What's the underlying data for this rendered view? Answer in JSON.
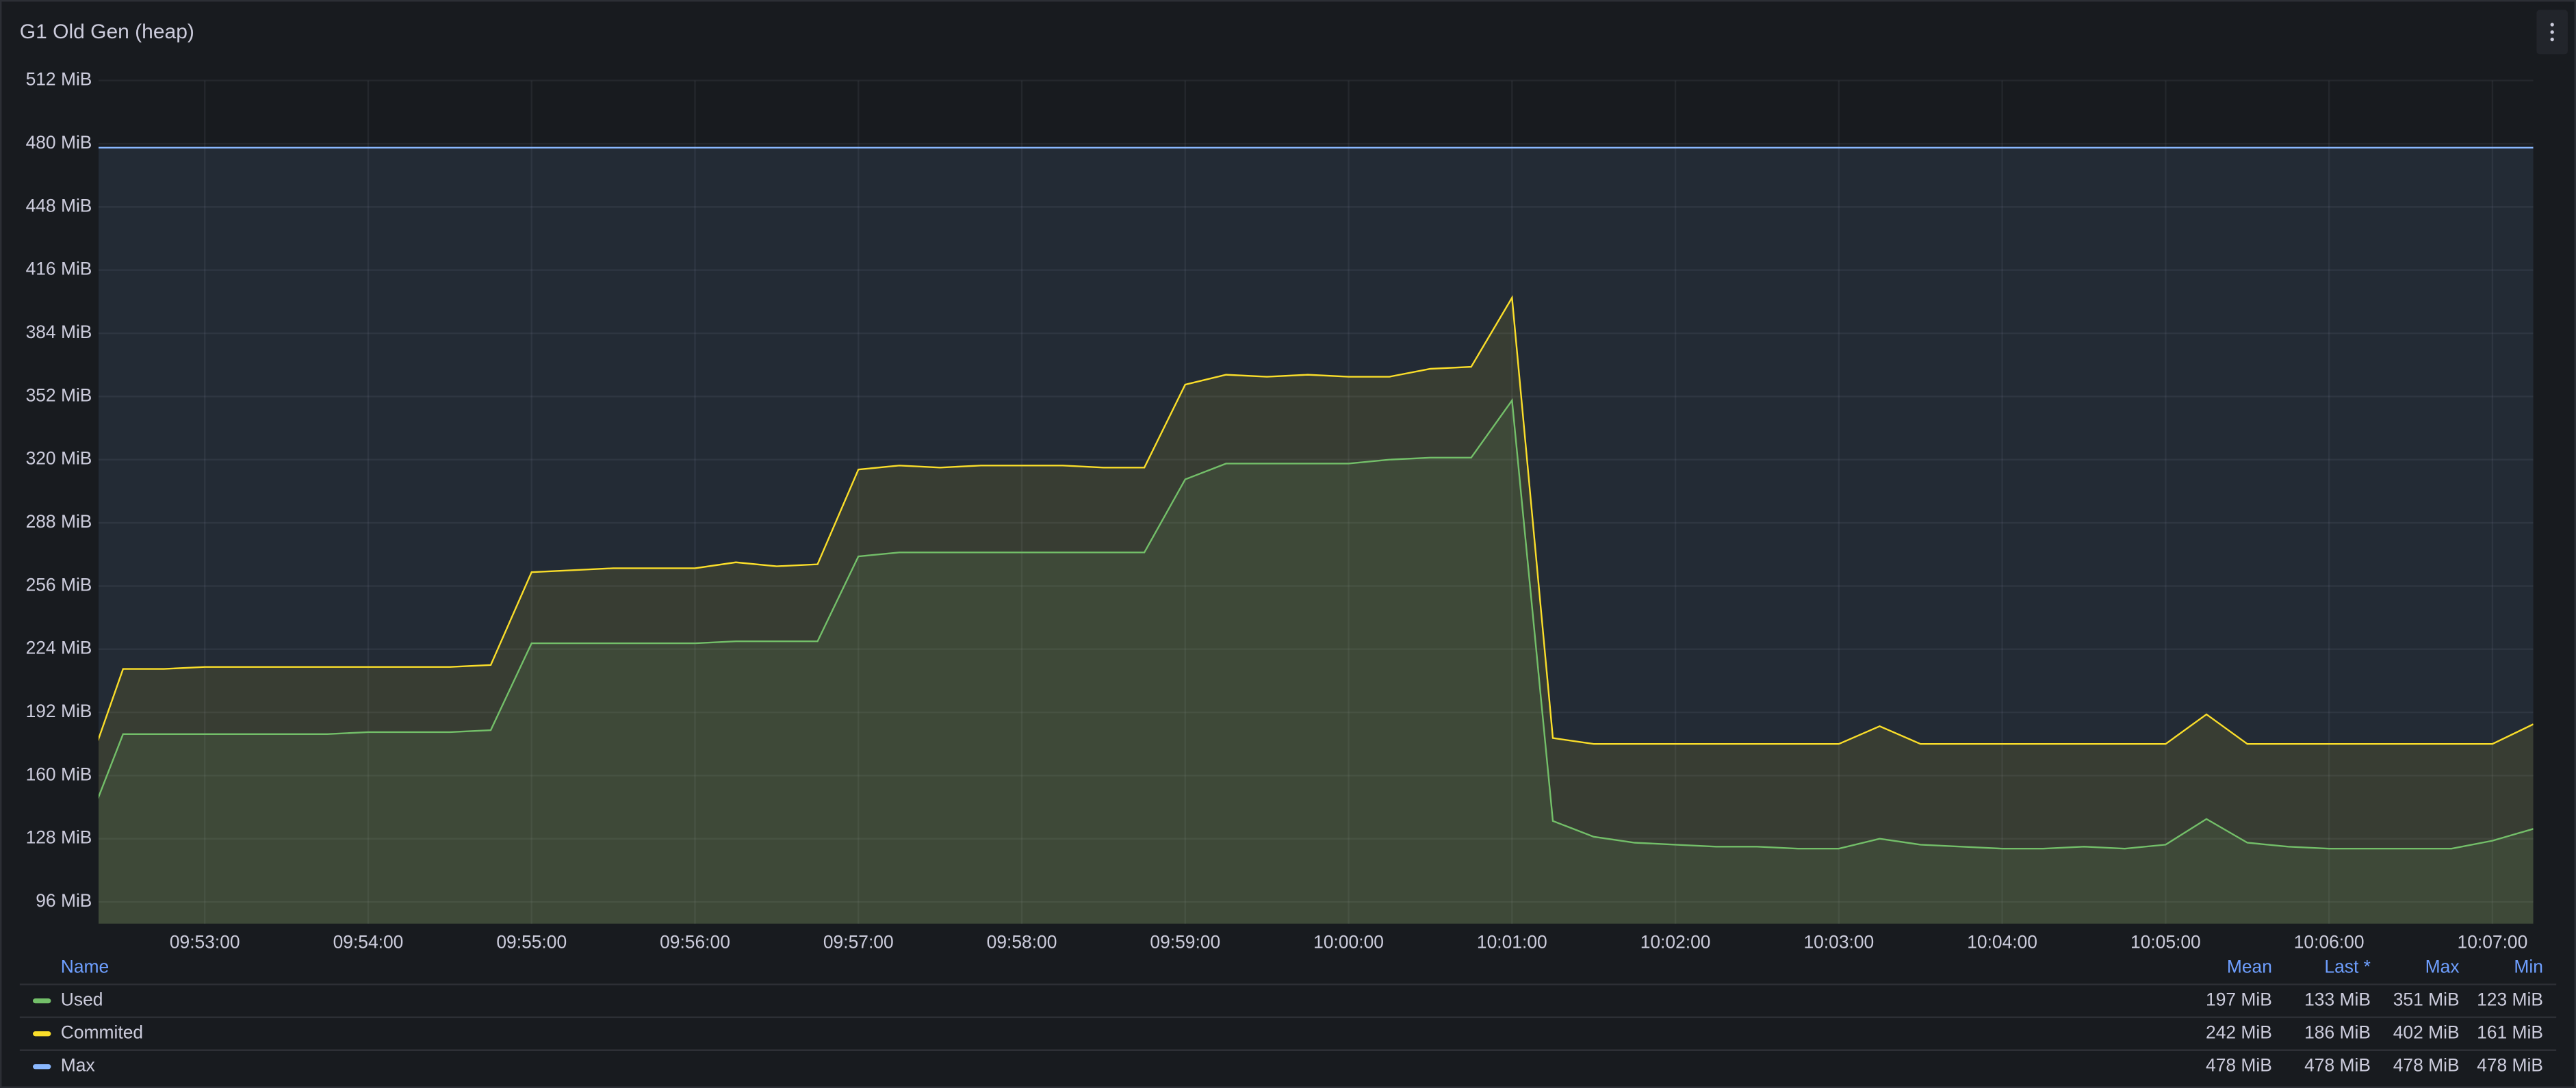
{
  "chart_data": {
    "type": "line",
    "title": "G1 Old Gen (heap)",
    "x": [
      "09:52:15",
      "09:52:30",
      "09:52:45",
      "09:53:00",
      "09:53:15",
      "09:53:30",
      "09:53:45",
      "09:54:00",
      "09:54:15",
      "09:54:30",
      "09:54:45",
      "09:55:00",
      "09:55:15",
      "09:55:30",
      "09:55:45",
      "09:56:00",
      "09:56:15",
      "09:56:30",
      "09:56:45",
      "09:57:00",
      "09:57:15",
      "09:57:30",
      "09:57:45",
      "09:58:00",
      "09:58:15",
      "09:58:30",
      "09:58:45",
      "09:59:00",
      "09:59:15",
      "09:59:30",
      "09:59:45",
      "10:00:00",
      "10:00:15",
      "10:00:30",
      "10:00:45",
      "10:01:00",
      "10:01:15",
      "10:01:30",
      "10:01:45",
      "10:02:00",
      "10:02:15",
      "10:02:30",
      "10:02:45",
      "10:03:00",
      "10:03:15",
      "10:03:30",
      "10:03:45",
      "10:04:00",
      "10:04:15",
      "10:04:30",
      "10:04:45",
      "10:05:00",
      "10:05:15",
      "10:05:30",
      "10:05:45",
      "10:06:00",
      "10:06:15",
      "10:06:30",
      "10:06:45",
      "10:07:00",
      "10:07:15"
    ],
    "xlim": [
      "09:52:21",
      "10:07:15"
    ],
    "xticks": [
      "09:53:00",
      "09:54:00",
      "09:55:00",
      "09:56:00",
      "09:57:00",
      "09:58:00",
      "09:59:00",
      "10:00:00",
      "10:01:00",
      "10:02:00",
      "10:03:00",
      "10:04:00",
      "10:05:00",
      "10:06:00",
      "10:07:00"
    ],
    "ylim": [
      85,
      512
    ],
    "yticks": [
      {
        "value": 96,
        "label": "96 MiB"
      },
      {
        "value": 128,
        "label": "128 MiB"
      },
      {
        "value": 160,
        "label": "160 MiB"
      },
      {
        "value": 192,
        "label": "192 MiB"
      },
      {
        "value": 224,
        "label": "224 MiB"
      },
      {
        "value": 256,
        "label": "256 MiB"
      },
      {
        "value": 288,
        "label": "288 MiB"
      },
      {
        "value": 320,
        "label": "320 MiB"
      },
      {
        "value": 352,
        "label": "352 MiB"
      },
      {
        "value": 384,
        "label": "384 MiB"
      },
      {
        "value": 416,
        "label": "416 MiB"
      },
      {
        "value": 448,
        "label": "448 MiB"
      },
      {
        "value": 480,
        "label": "480 MiB"
      },
      {
        "value": 512,
        "label": "512 MiB"
      }
    ],
    "grid": true,
    "series": [
      {
        "name": "Used",
        "color": "#73bf69",
        "values": [
          128,
          181,
          181,
          181,
          181,
          181,
          181,
          182,
          182,
          182,
          183,
          227,
          227,
          227,
          227,
          227,
          228,
          228,
          228,
          271,
          273,
          273,
          273,
          273,
          273,
          273,
          273,
          310,
          318,
          318,
          318,
          318,
          320,
          321,
          321,
          350,
          137,
          129,
          126,
          125,
          124,
          124,
          123,
          123,
          128,
          125,
          124,
          123,
          123,
          124,
          123,
          125,
          138,
          126,
          124,
          123,
          123,
          123,
          123,
          127,
          133
        ]
      },
      {
        "name": "Commited",
        "color": "#fade2a",
        "values": [
          155,
          214,
          214,
          215,
          215,
          215,
          215,
          215,
          215,
          215,
          216,
          263,
          264,
          265,
          265,
          265,
          268,
          266,
          267,
          315,
          317,
          316,
          317,
          317,
          317,
          316,
          316,
          358,
          363,
          362,
          363,
          362,
          362,
          366,
          367,
          402,
          179,
          176,
          176,
          176,
          176,
          176,
          176,
          176,
          185,
          176,
          176,
          176,
          176,
          176,
          176,
          176,
          191,
          176,
          176,
          176,
          176,
          176,
          176,
          176,
          186
        ]
      },
      {
        "name": "Max",
        "color": "#8ab8ff",
        "values": [
          478,
          478,
          478,
          478,
          478,
          478,
          478,
          478,
          478,
          478,
          478,
          478,
          478,
          478,
          478,
          478,
          478,
          478,
          478,
          478,
          478,
          478,
          478,
          478,
          478,
          478,
          478,
          478,
          478,
          478,
          478,
          478,
          478,
          478,
          478,
          478,
          478,
          478,
          478,
          478,
          478,
          478,
          478,
          478,
          478,
          478,
          478,
          478,
          478,
          478,
          478,
          478,
          478,
          478,
          478,
          478,
          478,
          478,
          478,
          478,
          478
        ]
      }
    ],
    "legend_table": {
      "columns": [
        "Name",
        "Mean",
        "Last *",
        "Max",
        "Min"
      ],
      "rows": [
        [
          "197 MiB",
          "133 MiB",
          "351 MiB",
          "123 MiB"
        ],
        [
          "242 MiB",
          "186 MiB",
          "402 MiB",
          "161 MiB"
        ],
        [
          "478 MiB",
          "478 MiB",
          "478 MiB",
          "478 MiB"
        ]
      ]
    }
  }
}
